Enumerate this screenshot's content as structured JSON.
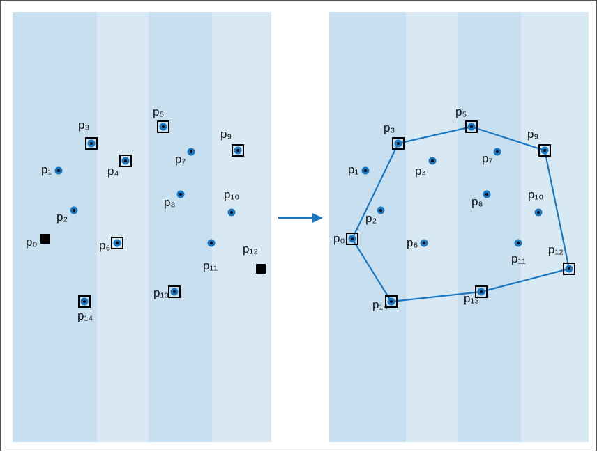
{
  "colors": {
    "band_dark": "#c7dfee",
    "band_light": "#d9e9f4",
    "point_fill": "#1a78c2",
    "point_center": "#000000",
    "hull_line": "#1a78c2",
    "arrow": "#1a78c2",
    "box_stroke": "#000000"
  },
  "labels": {
    "p0": "p₀",
    "p1": "p₁",
    "p2": "p₂",
    "p3": "p₃",
    "p4": "p₄",
    "p5": "p₅",
    "p6": "p₆",
    "p7": "p₇",
    "p8": "p₈",
    "p9": "p₉",
    "p10": "p₁₀",
    "p11": "p₁₁",
    "p12": "p₁₂",
    "p13": "p₁₃",
    "p14": "p₁₄"
  },
  "before": {
    "marked_squares": [
      "p0",
      "p12"
    ],
    "boxed_points": [
      "p3",
      "p4",
      "p5",
      "p6",
      "p9",
      "p13",
      "p14"
    ]
  },
  "after": {
    "hull_order": [
      "p0",
      "p3",
      "p5",
      "p9",
      "p12",
      "p13",
      "p14"
    ]
  }
}
